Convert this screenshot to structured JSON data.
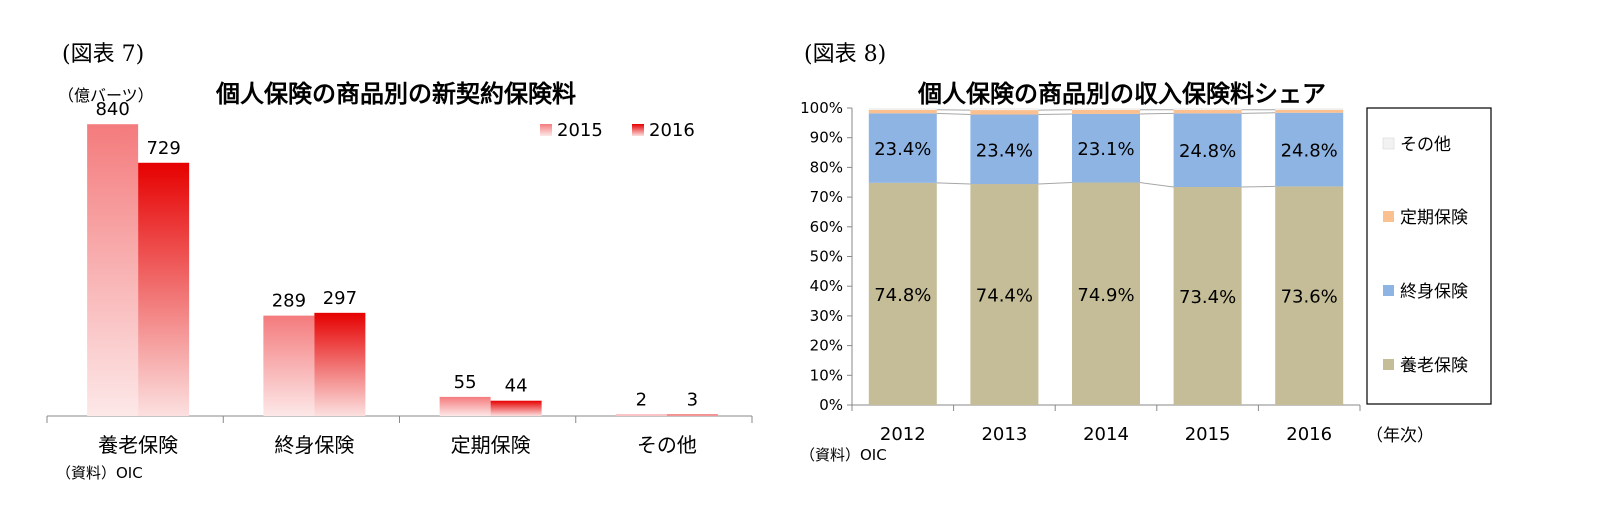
{
  "chart_data": [
    {
      "figure_label": "(図表 7)",
      "type": "bar",
      "title": "個人保険の商品別の新契約保険料",
      "unit_label": "（億バーツ）",
      "source": "（資料）OIC",
      "categories": [
        "養老保険",
        "終身保険",
        "定期保険",
        "その他"
      ],
      "series": [
        {
          "name": "2015",
          "values": [
            840,
            289,
            55,
            2
          ],
          "color": "#f47b7d"
        },
        {
          "name": "2016",
          "values": [
            729,
            297,
            44,
            3
          ],
          "color": "#e60000"
        }
      ],
      "legend_position": "top-right",
      "grid": false
    },
    {
      "figure_label": "(図表 8)",
      "type": "bar",
      "stacked": true,
      "title": "個人保険の商品別の収入保険料シェア",
      "source": "（資料）OIC",
      "x_unit_label": "（年次）",
      "categories": [
        "2012",
        "2013",
        "2014",
        "2015",
        "2016"
      ],
      "ylim": [
        0,
        100
      ],
      "y_ticks": [
        "0%",
        "10%",
        "20%",
        "30%",
        "40%",
        "50%",
        "60%",
        "70%",
        "80%",
        "90%",
        "100%"
      ],
      "series": [
        {
          "name": "養老保険",
          "values": [
            74.8,
            74.4,
            74.9,
            73.4,
            73.6
          ],
          "labels": [
            "74.8%",
            "74.4%",
            "74.9%",
            "73.4%",
            "73.6%"
          ],
          "color": "#c4bd97"
        },
        {
          "name": "終身保険",
          "values": [
            23.4,
            23.4,
            23.1,
            24.8,
            24.8
          ],
          "labels": [
            "23.4%",
            "23.4%",
            "23.1%",
            "24.8%",
            "24.8%"
          ],
          "color": "#8eb4e3"
        },
        {
          "name": "定期保険",
          "values": [
            1.2,
            1.5,
            1.4,
            1.2,
            1.0
          ],
          "color": "#fac090"
        },
        {
          "name": "その他",
          "values": [
            0.6,
            0.7,
            0.6,
            0.6,
            0.6
          ],
          "color": "#f2f2f2"
        }
      ],
      "legend_order": [
        "その他",
        "定期保険",
        "終身保険",
        "養老保険"
      ],
      "legend_position": "right",
      "grid": false
    }
  ]
}
